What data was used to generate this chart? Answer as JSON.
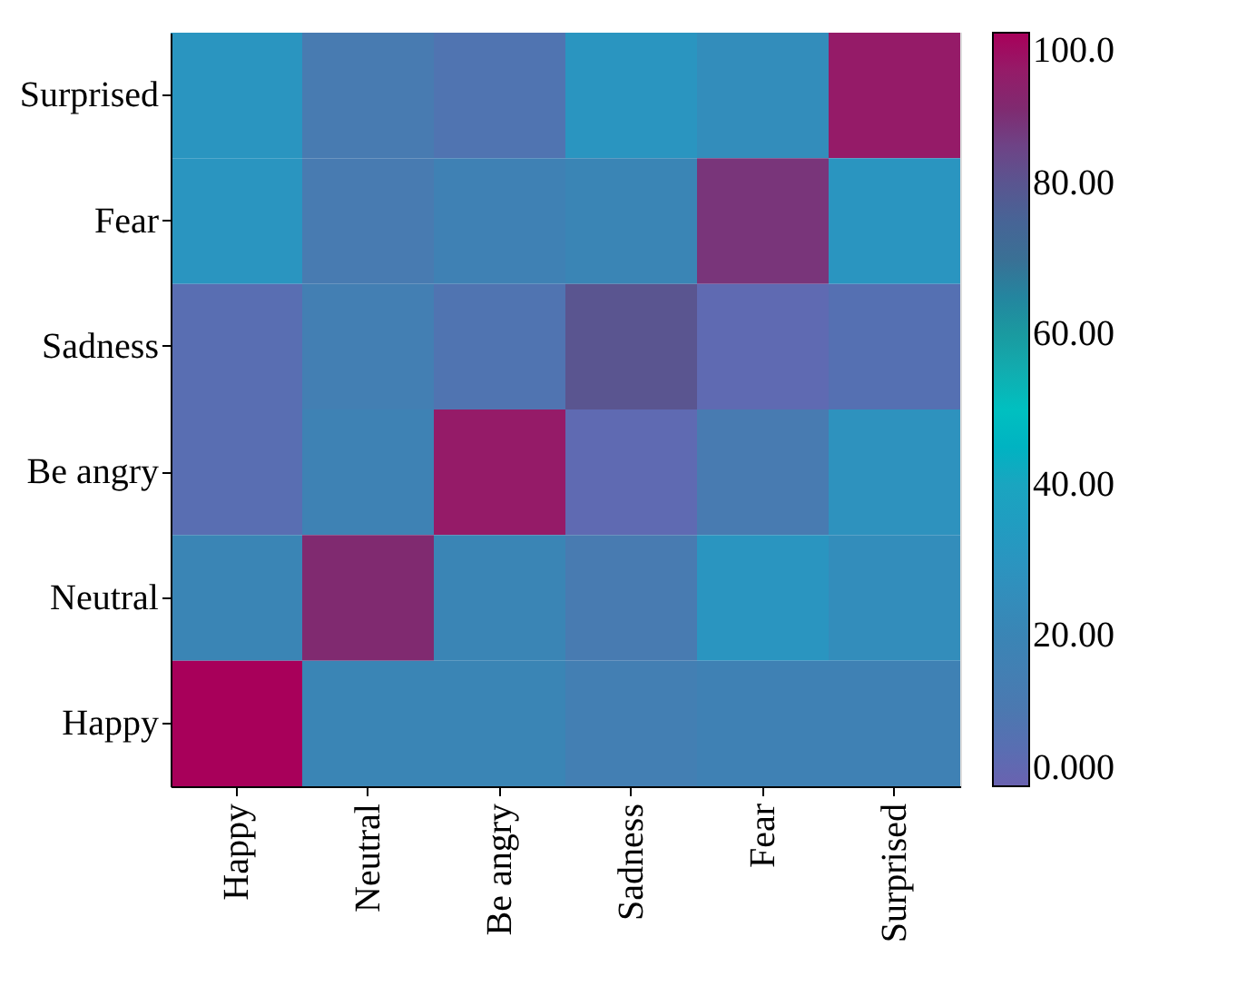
{
  "chart_data": {
    "type": "heatmap",
    "categories": [
      "Happy",
      "Neutral",
      "Be angry",
      "Sadness",
      "Fear",
      "Surprised"
    ],
    "y_categories": [
      "Surprised",
      "Fear",
      "Sadness",
      "Be angry",
      "Neutral",
      "Happy"
    ],
    "cells": [
      [
        30,
        12,
        8,
        30,
        25,
        95
      ],
      [
        30,
        12,
        17,
        20,
        88,
        30
      ],
      [
        5,
        15,
        8,
        80,
        3,
        6
      ],
      [
        5,
        18,
        95,
        3,
        12,
        28
      ],
      [
        20,
        90,
        20,
        12,
        30,
        25
      ],
      [
        100,
        20,
        20,
        15,
        17,
        17
      ]
    ],
    "clim": [
      0,
      100
    ],
    "cticks": [
      {
        "value": 0,
        "label": "0.000"
      },
      {
        "value": 20,
        "label": "20.00"
      },
      {
        "value": 40,
        "label": "40.00"
      },
      {
        "value": 60,
        "label": "60.00"
      },
      {
        "value": 80,
        "label": "80.00"
      },
      {
        "value": 100,
        "label": "100.0"
      }
    ]
  }
}
